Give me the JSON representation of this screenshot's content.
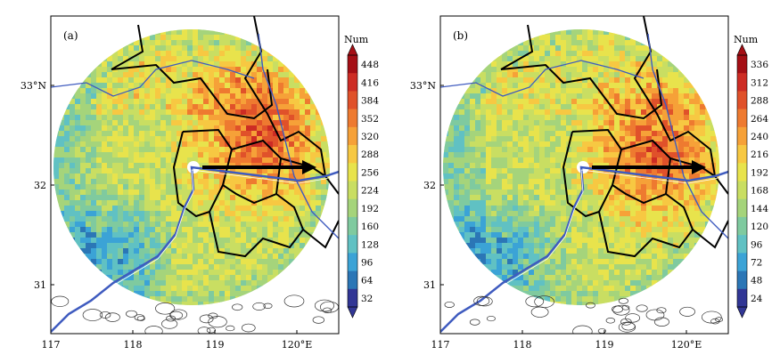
{
  "panels": [
    {
      "label": "(a)",
      "colorbar": {
        "title": "Num",
        "ticks": [
          "448",
          "416",
          "384",
          "352",
          "320",
          "288",
          "256",
          "224",
          "192",
          "160",
          "128",
          "96",
          "64",
          "32"
        ]
      },
      "x_ticks": [
        "117",
        "118",
        "119",
        "120°E"
      ],
      "y_ticks": [
        "33°N",
        "32",
        "31"
      ]
    },
    {
      "label": "(b)",
      "colorbar": {
        "title": "Num",
        "ticks": [
          "336",
          "312",
          "288",
          "264",
          "240",
          "216",
          "192",
          "168",
          "144",
          "120",
          "96",
          "72",
          "48",
          "24"
        ]
      },
      "x_ticks": [
        "117",
        "118",
        "119",
        "120°E"
      ],
      "y_ticks": [
        "33°N",
        "32",
        "31"
      ]
    }
  ],
  "palette": [
    "#313695",
    "#2b76b6",
    "#3ba3d6",
    "#60c1c3",
    "#7fca9f",
    "#a5d47b",
    "#c9de62",
    "#e8e34c",
    "#f7c842",
    "#f6a138",
    "#ee7a30",
    "#e0512a",
    "#cd2c24",
    "#a50f15"
  ],
  "colors": {
    "river": "#3f5bbf",
    "boundary": "#000000",
    "arrow": "#000000"
  }
}
